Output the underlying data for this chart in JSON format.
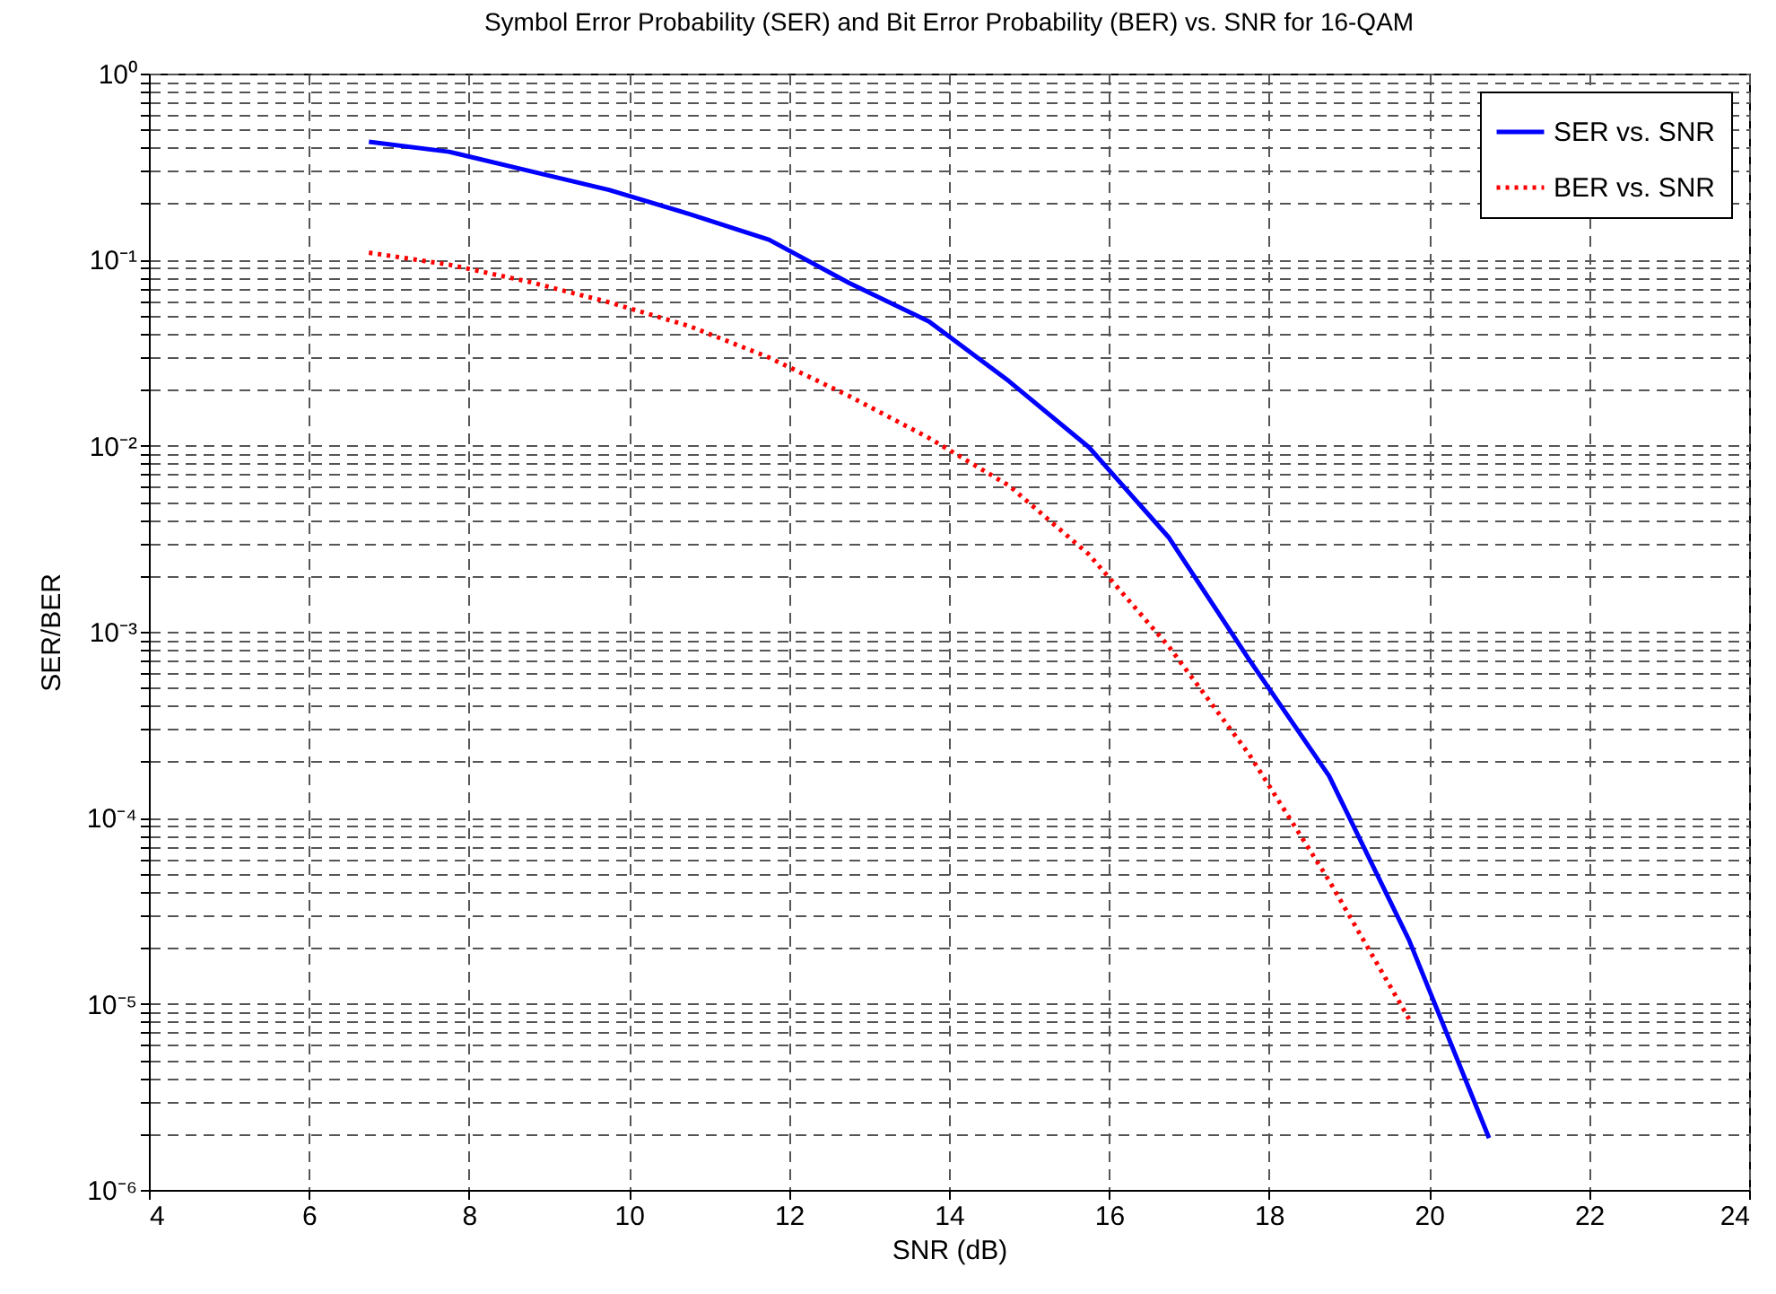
{
  "chart_data": {
    "type": "line",
    "title": "Symbol Error Probability (SER) and Bit Error Probability (BER) vs. SNR for 16-QAM",
    "xlabel": "SNR (dB)",
    "ylabel": "SER/BER",
    "x": [
      6.75,
      7.75,
      8.75,
      9.75,
      10.75,
      11.75,
      12.75,
      13.75,
      14.75,
      15.75,
      16.75,
      17.75,
      18.75,
      19.75,
      20.75
    ],
    "series": [
      {
        "name": "SER vs. SNR",
        "color": "#0000ff",
        "line_style": "solid",
        "values": [
          0.43,
          0.38,
          0.3,
          0.237,
          0.176,
          0.128,
          0.075,
          0.0465,
          0.0222,
          0.0098,
          0.0032,
          0.00071,
          0.000168,
          2.2e-05,
          1.9e-06
        ]
      },
      {
        "name": "BER vs. SNR",
        "color": "#ff0000",
        "line_style": "dotted",
        "values": [
          0.109,
          0.094,
          0.076,
          0.059,
          0.044,
          0.0298,
          0.0185,
          0.011,
          0.0061,
          0.0026,
          0.00083,
          0.00022,
          4.6e-05,
          8.3e-06,
          null
        ]
      }
    ],
    "xlim": [
      4,
      24
    ],
    "xticks": [
      4,
      6,
      8,
      10,
      12,
      14,
      16,
      18,
      20,
      22,
      24
    ],
    "ylim": [
      1e-06,
      1
    ],
    "log": true,
    "yticks": [
      {
        "value": 1e-06,
        "label": "10⁻⁶"
      },
      {
        "value": 2e-06,
        "label": null
      },
      {
        "value": 3e-06,
        "label": null
      },
      {
        "value": 4e-06,
        "label": null
      },
      {
        "value": 5e-06,
        "label": null
      },
      {
        "value": 6e-06,
        "label": null
      },
      {
        "value": 7e-06,
        "label": null
      },
      {
        "value": 8e-06,
        "label": null
      },
      {
        "value": 9e-06,
        "label": null
      },
      {
        "value": 1e-05,
        "label": "10⁻⁵"
      },
      {
        "value": 2e-05,
        "label": null
      },
      {
        "value": 3e-05,
        "label": null
      },
      {
        "value": 4e-05,
        "label": null
      },
      {
        "value": 5e-05,
        "label": null
      },
      {
        "value": 6e-05,
        "label": null
      },
      {
        "value": 7e-05,
        "label": null
      },
      {
        "value": 8e-05,
        "label": null
      },
      {
        "value": 9e-05,
        "label": null
      },
      {
        "value": 0.0001,
        "label": "10⁻⁴"
      },
      {
        "value": 0.0002,
        "label": null
      },
      {
        "value": 0.0003,
        "label": null
      },
      {
        "value": 0.0004,
        "label": null
      },
      {
        "value": 0.0005,
        "label": null
      },
      {
        "value": 0.0006,
        "label": null
      },
      {
        "value": 0.0007,
        "label": null
      },
      {
        "value": 0.0008,
        "label": null
      },
      {
        "value": 0.0009,
        "label": null
      },
      {
        "value": 0.001,
        "label": "10⁻³"
      },
      {
        "value": 0.002,
        "label": null
      },
      {
        "value": 0.003,
        "label": null
      },
      {
        "value": 0.004,
        "label": null
      },
      {
        "value": 0.005,
        "label": null
      },
      {
        "value": 0.006,
        "label": null
      },
      {
        "value": 0.007,
        "label": null
      },
      {
        "value": 0.008,
        "label": null
      },
      {
        "value": 0.009,
        "label": null
      },
      {
        "value": 0.01,
        "label": "10⁻²"
      },
      {
        "value": 0.02,
        "label": null
      },
      {
        "value": 0.03,
        "label": null
      },
      {
        "value": 0.04,
        "label": null
      },
      {
        "value": 0.05,
        "label": null
      },
      {
        "value": 0.06,
        "label": null
      },
      {
        "value": 0.07,
        "label": null
      },
      {
        "value": 0.08,
        "label": null
      },
      {
        "value": 0.09,
        "label": null
      },
      {
        "value": 0.1,
        "label": "10⁻¹"
      },
      {
        "value": 0.2,
        "label": null
      },
      {
        "value": 0.3,
        "label": null
      },
      {
        "value": 0.4,
        "label": null
      },
      {
        "value": 0.5,
        "label": null
      },
      {
        "value": 0.6,
        "label": null
      },
      {
        "value": 0.7,
        "label": null
      },
      {
        "value": 0.8,
        "label": null
      },
      {
        "value": 0.9,
        "label": null
      },
      {
        "value": 1,
        "label": "10⁰"
      }
    ],
    "grid": true,
    "legend": "top right"
  }
}
